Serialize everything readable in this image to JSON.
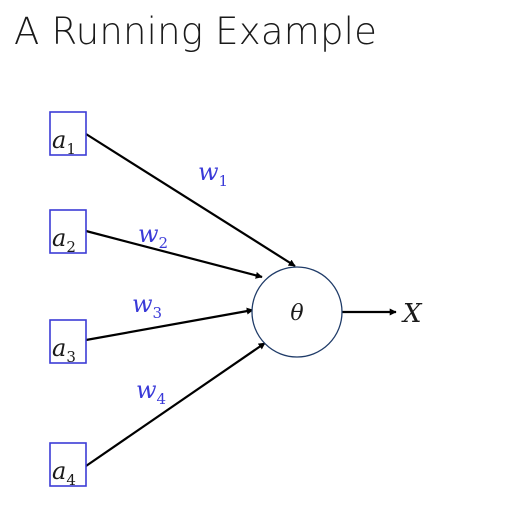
{
  "title": "A Running Example",
  "inputs": [
    {
      "symbol": "a",
      "sub": "1"
    },
    {
      "symbol": "a",
      "sub": "2"
    },
    {
      "symbol": "a",
      "sub": "3"
    },
    {
      "symbol": "a",
      "sub": "4"
    }
  ],
  "weights": [
    {
      "symbol": "w",
      "sub": "1"
    },
    {
      "symbol": "w",
      "sub": "2"
    },
    {
      "symbol": "w",
      "sub": "3"
    },
    {
      "symbol": "w",
      "sub": "4"
    }
  ],
  "node": {
    "label": "θ"
  },
  "output": {
    "label": "X"
  },
  "colors": {
    "box_border": "#3c3cd6",
    "weight_text": "#3a3ad8",
    "node_border": "#1f3b68",
    "edge": "#000000"
  }
}
